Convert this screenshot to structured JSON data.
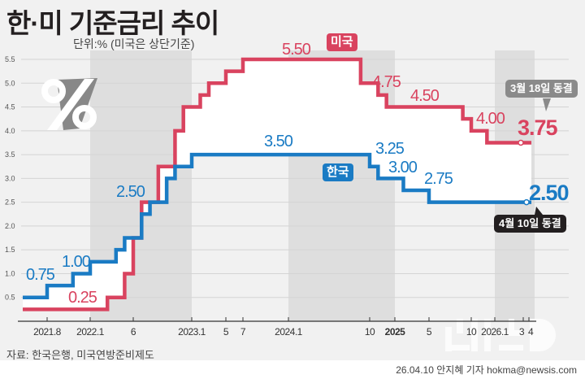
{
  "title": "한·미 기준금리 추이",
  "unit_note": "단위:% (미국은 상단기준)",
  "source": "자료: 한국은행, 미국연방준비제도",
  "credit": "26.04.10 안지혜 기자 hokma@newsis.com",
  "logo_text": "뉴시스",
  "colors": {
    "us": "#d9435f",
    "korea": "#1a7bc4",
    "background": "#f1f1f1",
    "band": "#dedede"
  },
  "icons": {
    "percent": "percent-icon"
  },
  "chart_data": {
    "type": "line",
    "step": true,
    "title": "한·미 기준금리 추이",
    "ylabel": "%",
    "ylim": [
      0,
      5.5
    ],
    "yticks": [
      "0.5",
      "1.0",
      "1.5",
      "2.0",
      "2.5",
      "3.0",
      "3.5",
      "4.0",
      "4.5",
      "5.0",
      "5.5"
    ],
    "xticks": [
      {
        "date": "2021.8",
        "label": "2021.8",
        "bold": false
      },
      {
        "date": "2022.1",
        "label": "2022.1",
        "bold": false
      },
      {
        "date": "2022.6",
        "label": "6",
        "bold": false
      },
      {
        "date": "2023.1",
        "label": "2023.1",
        "bold": false
      },
      {
        "date": "2023.5",
        "label": "5",
        "bold": false
      },
      {
        "date": "2023.7",
        "label": "7",
        "bold": false
      },
      {
        "date": "2024.1",
        "label": "2024.1",
        "bold": false
      },
      {
        "date": "2024.10",
        "label": "10",
        "bold": false
      },
      {
        "date": "2025.1",
        "label": "2025",
        "bold": true
      },
      {
        "date": "2025.5",
        "label": "5",
        "bold": false
      },
      {
        "date": "2025.10",
        "label": "10",
        "bold": false
      },
      {
        "date": "2026.1",
        "label": "2026.1",
        "bold": false
      },
      {
        "date": "2026.3",
        "label": "3",
        "bold": false
      },
      {
        "date": "2026.4",
        "label": "4",
        "bold": false
      }
    ],
    "grid": true,
    "end_date": "2026.4",
    "series": [
      {
        "name": "미국",
        "color": "#d9435f",
        "initial": 0.25,
        "steps": [
          [
            "2022.3",
            0.5
          ],
          [
            "2022.5",
            1.0
          ],
          [
            "2022.6",
            1.75
          ],
          [
            "2022.7",
            2.5
          ],
          [
            "2022.9",
            3.25
          ],
          [
            "2022.11",
            4.0
          ],
          [
            "2022.12",
            4.5
          ],
          [
            "2023.2",
            4.75
          ],
          [
            "2023.3",
            5.0
          ],
          [
            "2023.5",
            5.25
          ],
          [
            "2023.7",
            5.5
          ],
          [
            "2024.9",
            5.0
          ],
          [
            "2024.11",
            4.75
          ],
          [
            "2024.12",
            4.5
          ],
          [
            "2025.9",
            4.25
          ],
          [
            "2025.10",
            4.0
          ],
          [
            "2025.12",
            3.75
          ]
        ],
        "marker": {
          "date": "2026.3",
          "value": 3.75
        },
        "labels": [
          "0.25",
          "5.50",
          "4.75",
          "4.50",
          "4.00",
          "3.75"
        ],
        "note": "3월 18일 동결"
      },
      {
        "name": "한국",
        "color": "#1a7bc4",
        "initial": 0.5,
        "steps": [
          [
            "2021.8",
            0.75
          ],
          [
            "2021.11",
            1.0
          ],
          [
            "2022.1",
            1.25
          ],
          [
            "2022.4",
            1.5
          ],
          [
            "2022.5",
            1.75
          ],
          [
            "2022.7",
            2.25
          ],
          [
            "2022.8",
            2.5
          ],
          [
            "2022.10",
            3.0
          ],
          [
            "2022.11",
            3.25
          ],
          [
            "2023.1",
            3.5
          ],
          [
            "2024.10",
            3.25
          ],
          [
            "2024.11",
            3.0
          ],
          [
            "2025.2",
            2.75
          ],
          [
            "2025.5",
            2.5
          ]
        ],
        "marker": {
          "date": "2026.4",
          "value": 2.5
        },
        "labels": [
          "0.75",
          "1.00",
          "2.50",
          "3.50",
          "3.25",
          "3.00",
          "2.75",
          "2.50"
        ],
        "note": "4월 10일 동결"
      }
    ]
  }
}
